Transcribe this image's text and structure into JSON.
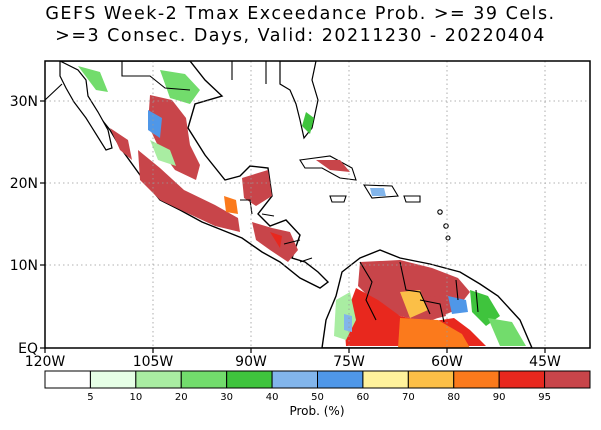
{
  "title_line1": "GEFS Week-2 Tmax Exceedance Prob. >= 39 Cels.",
  "title_line2": ">=3 Consec. Days, Valid: 20211230 - 20220404",
  "lon_labels": [
    "120W",
    "105W",
    "90W",
    "75W",
    "60W",
    "45W"
  ],
  "lat_labels": [
    "30N",
    "20N",
    "10N",
    "EQ"
  ],
  "colorbar": {
    "title": "Prob. (%)",
    "tick_labels": [
      "5",
      "10",
      "20",
      "30",
      "40",
      "50",
      "60",
      "70",
      "80",
      "90",
      "95"
    ],
    "colors": [
      "#ffffff",
      "#e6ffe6",
      "#a9eda2",
      "#72dc6c",
      "#3fc43d",
      "#82b5eb",
      "#4f97e8",
      "#fff29c",
      "#fcbf47",
      "#fb7a1c",
      "#e8281e",
      "#c8454a"
    ]
  },
  "colors": {
    "land_outline": "#000000",
    "grid": "#999999",
    "high_prob": "#c8454a"
  }
}
